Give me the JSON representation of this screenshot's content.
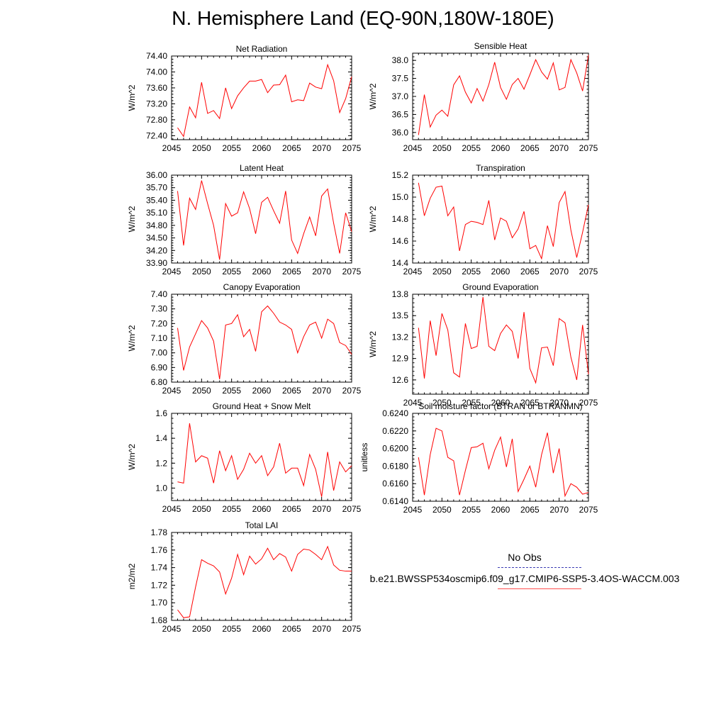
{
  "title": "N. Hemisphere Land (EQ-90N,180W-180E)",
  "legend": {
    "obs_label": "No Obs",
    "case_label": "b.e21.BWSSP534oscmip6.f09_g17.CMIP6-SSP5-3.4OS-WACCM.003",
    "obs_color": "#3c3cb4",
    "case_color": "#ff0000"
  },
  "chart_data": [
    {
      "type": "line",
      "id": "net-radiation",
      "title": "Net Radiation",
      "ylabel": "W/m^2",
      "xlabel": "",
      "xlim": [
        2045,
        2075
      ],
      "ylim": [
        72.3,
        74.4
      ],
      "yticks": [
        72.4,
        72.8,
        73.2,
        73.6,
        74.0,
        74.4
      ],
      "ydecimals": 2,
      "xticks": [
        2045,
        2050,
        2055,
        2060,
        2065,
        2070,
        2075
      ],
      "x": [
        2046,
        2047,
        2048,
        2049,
        2050,
        2051,
        2052,
        2053,
        2054,
        2055,
        2056,
        2057,
        2058,
        2059,
        2060,
        2061,
        2062,
        2063,
        2064,
        2065,
        2066,
        2067,
        2068,
        2069,
        2070,
        2071,
        2072,
        2073,
        2074,
        2075
      ],
      "series": [
        {
          "name": "b.e21.BWSSP534oscmip6.f09_g17.CMIP6-SSP5-3.4OS-WACCM.003",
          "values": [
            72.6,
            72.38,
            73.12,
            72.85,
            73.74,
            72.96,
            73.03,
            72.83,
            73.6,
            73.08,
            73.4,
            73.6,
            73.77,
            73.77,
            73.81,
            73.48,
            73.67,
            73.68,
            73.92,
            73.25,
            73.3,
            73.28,
            73.72,
            73.62,
            73.58,
            74.18,
            73.78,
            72.98,
            73.33,
            73.88
          ]
        }
      ]
    },
    {
      "type": "line",
      "id": "sensible-heat",
      "title": "Sensible Heat",
      "ylabel": "W/m^2",
      "xlabel": "",
      "xlim": [
        2045,
        2075
      ],
      "ylim": [
        35.8,
        38.2
      ],
      "yticks": [
        36.0,
        36.5,
        37.0,
        37.5,
        38.0
      ],
      "ydecimals": 1,
      "xticks": [
        2045,
        2050,
        2055,
        2060,
        2065,
        2070,
        2075
      ],
      "x": [
        2046,
        2047,
        2048,
        2049,
        2050,
        2051,
        2052,
        2053,
        2054,
        2055,
        2056,
        2057,
        2058,
        2059,
        2060,
        2061,
        2062,
        2063,
        2064,
        2065,
        2066,
        2067,
        2068,
        2069,
        2070,
        2071,
        2072,
        2073,
        2074,
        2075
      ],
      "series": [
        {
          "name": "b.e21.BWSSP534oscmip6.f09_g17.CMIP6-SSP5-3.4OS-WACCM.003",
          "values": [
            35.93,
            37.05,
            36.15,
            36.48,
            36.62,
            36.45,
            37.32,
            37.57,
            37.12,
            36.82,
            37.22,
            36.87,
            37.33,
            37.95,
            37.25,
            36.92,
            37.33,
            37.5,
            37.2,
            37.6,
            38.02,
            37.68,
            37.48,
            37.93,
            37.18,
            37.25,
            38.02,
            37.65,
            37.15,
            38.15
          ]
        }
      ]
    },
    {
      "type": "line",
      "id": "latent-heat",
      "title": "Latent Heat",
      "ylabel": "W/m^2",
      "xlabel": "",
      "xlim": [
        2045,
        2075
      ],
      "ylim": [
        33.9,
        36.0
      ],
      "yticks": [
        33.9,
        34.2,
        34.5,
        34.8,
        35.1,
        35.4,
        35.7,
        36.0
      ],
      "ydecimals": 2,
      "xticks": [
        2045,
        2050,
        2055,
        2060,
        2065,
        2070,
        2075
      ],
      "x": [
        2046,
        2047,
        2048,
        2049,
        2050,
        2051,
        2052,
        2053,
        2054,
        2055,
        2056,
        2057,
        2058,
        2059,
        2060,
        2061,
        2062,
        2063,
        2064,
        2065,
        2066,
        2067,
        2068,
        2069,
        2070,
        2071,
        2072,
        2073,
        2074,
        2075
      ],
      "series": [
        {
          "name": "b.e21.BWSSP534oscmip6.f09_g17.CMIP6-SSP5-3.4OS-WACCM.003",
          "values": [
            35.62,
            34.32,
            35.45,
            35.18,
            35.87,
            35.32,
            34.8,
            33.98,
            35.32,
            35.02,
            35.1,
            35.6,
            35.2,
            34.6,
            35.35,
            35.47,
            35.15,
            34.85,
            35.62,
            34.45,
            34.13,
            34.6,
            35.0,
            34.55,
            35.5,
            35.67,
            34.85,
            34.13,
            35.1,
            34.65
          ]
        }
      ]
    },
    {
      "type": "line",
      "id": "transpiration",
      "title": "Transpiration",
      "ylabel": "W/m^2",
      "xlabel": "",
      "xlim": [
        2045,
        2075
      ],
      "ylim": [
        14.4,
        15.2
      ],
      "yticks": [
        14.4,
        14.6,
        14.8,
        15.0,
        15.2
      ],
      "ydecimals": 1,
      "xticks": [
        2045,
        2050,
        2055,
        2060,
        2065,
        2070,
        2075
      ],
      "x": [
        2046,
        2047,
        2048,
        2049,
        2050,
        2051,
        2052,
        2053,
        2054,
        2055,
        2056,
        2057,
        2058,
        2059,
        2060,
        2061,
        2062,
        2063,
        2064,
        2065,
        2066,
        2067,
        2068,
        2069,
        2070,
        2071,
        2072,
        2073,
        2074,
        2075
      ],
      "series": [
        {
          "name": "b.e21.BWSSP534oscmip6.f09_g17.CMIP6-SSP5-3.4OS-WACCM.003",
          "values": [
            15.13,
            14.83,
            14.99,
            15.09,
            15.1,
            14.83,
            14.91,
            14.51,
            14.75,
            14.78,
            14.77,
            14.75,
            14.97,
            14.61,
            14.81,
            14.78,
            14.63,
            14.71,
            14.87,
            14.53,
            14.56,
            14.44,
            14.74,
            14.55,
            14.95,
            15.05,
            14.7,
            14.45,
            14.68,
            14.93
          ]
        }
      ]
    },
    {
      "type": "line",
      "id": "canopy-evaporation",
      "title": "Canopy Evaporation",
      "ylabel": "W/m^2",
      "xlabel": "",
      "xlim": [
        2045,
        2075
      ],
      "ylim": [
        6.8,
        7.4
      ],
      "yticks": [
        6.8,
        6.9,
        7.0,
        7.1,
        7.2,
        7.3,
        7.4
      ],
      "ydecimals": 2,
      "xticks": [
        2045,
        2050,
        2055,
        2060,
        2065,
        2070,
        2075
      ],
      "x": [
        2046,
        2047,
        2048,
        2049,
        2050,
        2051,
        2052,
        2053,
        2054,
        2055,
        2056,
        2057,
        2058,
        2059,
        2060,
        2061,
        2062,
        2063,
        2064,
        2065,
        2066,
        2067,
        2068,
        2069,
        2070,
        2071,
        2072,
        2073,
        2074,
        2075
      ],
      "series": [
        {
          "name": "b.e21.BWSSP534oscmip6.f09_g17.CMIP6-SSP5-3.4OS-WACCM.003",
          "values": [
            7.17,
            6.88,
            7.04,
            7.13,
            7.22,
            7.17,
            7.08,
            6.82,
            7.19,
            7.2,
            7.26,
            7.11,
            7.16,
            7.01,
            7.28,
            7.32,
            7.27,
            7.21,
            7.19,
            7.16,
            7.0,
            7.11,
            7.19,
            7.21,
            7.1,
            7.23,
            7.2,
            7.07,
            7.05,
            6.99
          ]
        }
      ]
    },
    {
      "type": "line",
      "id": "ground-evaporation",
      "title": "Ground Evaporation",
      "ylabel": "W/m^2",
      "xlabel": "",
      "xlim": [
        2045,
        2075
      ],
      "ylim": [
        12.4,
        13.8
      ],
      "yticks": [
        12.6,
        12.9,
        13.2,
        13.5,
        13.8
      ],
      "ydecimals": 1,
      "xticks": [
        2045,
        2050,
        2055,
        2060,
        2065,
        2070,
        2075
      ],
      "x": [
        2046,
        2047,
        2048,
        2049,
        2050,
        2051,
        2052,
        2053,
        2054,
        2055,
        2056,
        2057,
        2058,
        2059,
        2060,
        2061,
        2062,
        2063,
        2064,
        2065,
        2066,
        2067,
        2068,
        2069,
        2070,
        2071,
        2072,
        2073,
        2074,
        2075
      ],
      "series": [
        {
          "name": "b.e21.BWSSP534oscmip6.f09_g17.CMIP6-SSP5-3.4OS-WACCM.003",
          "values": [
            13.33,
            12.62,
            13.43,
            12.94,
            13.53,
            13.3,
            12.7,
            12.64,
            13.39,
            13.04,
            13.07,
            13.76,
            13.07,
            13.01,
            13.25,
            13.37,
            13.28,
            12.9,
            13.55,
            12.76,
            12.56,
            13.05,
            13.06,
            12.8,
            13.46,
            13.4,
            12.92,
            12.6,
            13.37,
            12.68
          ]
        }
      ]
    },
    {
      "type": "line",
      "id": "ground-heat-snow-melt",
      "title": "Ground Heat + Snow Melt",
      "ylabel": "W/m^2",
      "xlabel": "",
      "xlim": [
        2045,
        2075
      ],
      "ylim": [
        0.9,
        1.6
      ],
      "yticks": [
        1.0,
        1.2,
        1.4,
        1.6
      ],
      "ydecimals": 1,
      "xticks": [
        2045,
        2050,
        2055,
        2060,
        2065,
        2070,
        2075
      ],
      "x": [
        2046,
        2047,
        2048,
        2049,
        2050,
        2051,
        2052,
        2053,
        2054,
        2055,
        2056,
        2057,
        2058,
        2059,
        2060,
        2061,
        2062,
        2063,
        2064,
        2065,
        2066,
        2067,
        2068,
        2069,
        2070,
        2071,
        2072,
        2073,
        2074,
        2075
      ],
      "series": [
        {
          "name": "b.e21.BWSSP534oscmip6.f09_g17.CMIP6-SSP5-3.4OS-WACCM.003",
          "values": [
            1.05,
            1.04,
            1.52,
            1.21,
            1.26,
            1.24,
            1.04,
            1.3,
            1.14,
            1.26,
            1.07,
            1.15,
            1.28,
            1.2,
            1.26,
            1.1,
            1.17,
            1.36,
            1.12,
            1.16,
            1.16,
            1.02,
            1.27,
            1.15,
            0.93,
            1.29,
            0.98,
            1.21,
            1.13,
            1.18
          ]
        }
      ]
    },
    {
      "type": "line",
      "id": "soil-moisture-factor",
      "title": "Soil moisture factor (BTRAN or BTRANMN)",
      "ylabel": "unitless",
      "xlabel": "",
      "xlim": [
        2045,
        2075
      ],
      "ylim": [
        0.614,
        0.624
      ],
      "yticks": [
        0.614,
        0.616,
        0.618,
        0.62,
        0.622,
        0.624
      ],
      "ydecimals": 4,
      "xticks": [
        2045,
        2050,
        2055,
        2060,
        2065,
        2070,
        2075
      ],
      "x": [
        2046,
        2047,
        2048,
        2049,
        2050,
        2051,
        2052,
        2053,
        2054,
        2055,
        2056,
        2057,
        2058,
        2059,
        2060,
        2061,
        2062,
        2063,
        2064,
        2065,
        2066,
        2067,
        2068,
        2069,
        2070,
        2071,
        2072,
        2073,
        2074,
        2075
      ],
      "series": [
        {
          "name": "b.e21.BWSSP534oscmip6.f09_g17.CMIP6-SSP5-3.4OS-WACCM.003",
          "values": [
            0.619,
            0.6147,
            0.6193,
            0.6223,
            0.622,
            0.619,
            0.6186,
            0.6147,
            0.6175,
            0.6201,
            0.6202,
            0.6206,
            0.6177,
            0.6198,
            0.6213,
            0.6179,
            0.6211,
            0.6151,
            0.6165,
            0.618,
            0.6156,
            0.6193,
            0.6218,
            0.6172,
            0.62,
            0.6146,
            0.616,
            0.6156,
            0.6148,
            0.615
          ]
        }
      ]
    },
    {
      "type": "line",
      "id": "total-lai",
      "title": "Total LAI",
      "ylabel": "m2/m2",
      "xlabel": "",
      "xlim": [
        2045,
        2075
      ],
      "ylim": [
        1.68,
        1.78
      ],
      "yticks": [
        1.68,
        1.7,
        1.72,
        1.74,
        1.76,
        1.78
      ],
      "ydecimals": 2,
      "xticks": [
        2045,
        2050,
        2055,
        2060,
        2065,
        2070,
        2075
      ],
      "x": [
        2046,
        2047,
        2048,
        2049,
        2050,
        2051,
        2052,
        2053,
        2054,
        2055,
        2056,
        2057,
        2058,
        2059,
        2060,
        2061,
        2062,
        2063,
        2064,
        2065,
        2066,
        2067,
        2068,
        2069,
        2070,
        2071,
        2072,
        2073,
        2074,
        2075
      ],
      "series": [
        {
          "name": "b.e21.BWSSP534oscmip6.f09_g17.CMIP6-SSP5-3.4OS-WACCM.003",
          "values": [
            1.692,
            1.683,
            1.684,
            1.718,
            1.749,
            1.745,
            1.742,
            1.735,
            1.71,
            1.728,
            1.755,
            1.732,
            1.753,
            1.744,
            1.75,
            1.762,
            1.749,
            1.756,
            1.752,
            1.736,
            1.755,
            1.761,
            1.76,
            1.755,
            1.749,
            1.764,
            1.743,
            1.737,
            1.736,
            1.736
          ]
        }
      ]
    }
  ]
}
